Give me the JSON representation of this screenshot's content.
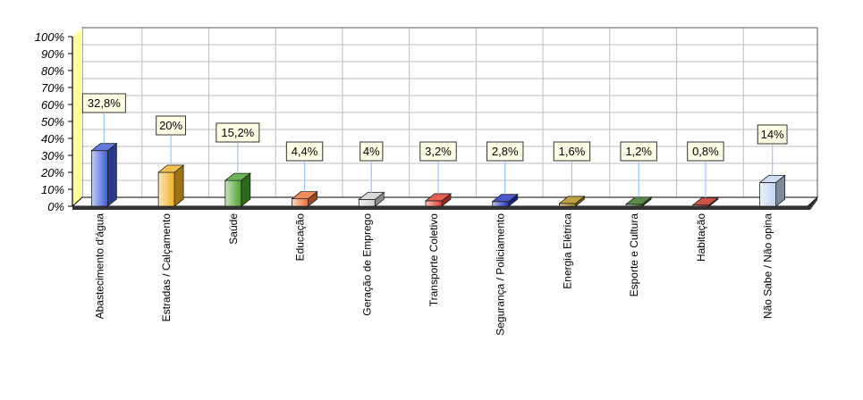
{
  "chart_data": {
    "type": "bar",
    "title": "",
    "xlabel": "",
    "ylabel": "",
    "ylim": [
      0,
      100
    ],
    "yticks": [
      0,
      10,
      20,
      30,
      40,
      50,
      60,
      70,
      80,
      90,
      100
    ],
    "ytick_labels": [
      "0%",
      "10%",
      "20%",
      "30%",
      "40%",
      "50%",
      "60%",
      "70%",
      "80%",
      "90%",
      "100%"
    ],
    "grid": true,
    "categories": [
      "Abastecimento d'água",
      "Estradas / Calçamento",
      "Saúde",
      "Educação",
      "Geração de Emprego",
      "Transporte Coletivo",
      "Segurança / Policiamento",
      "Energia Elétrica",
      "Esporte e Cultura",
      "Habitação",
      "Não Sabe / Não opina"
    ],
    "values": [
      32.8,
      20,
      15.2,
      4.4,
      4,
      3.2,
      2.8,
      1.6,
      1.2,
      0.8,
      14
    ],
    "value_labels": [
      "32,8%",
      "20%",
      "15,2%",
      "4,4%",
      "4%",
      "3,2%",
      "2,8%",
      "1,6%",
      "1,2%",
      "0,8%",
      "14%"
    ],
    "colors": [
      "#3b5bdb",
      "#f0b020",
      "#4aa02c",
      "#f07030",
      "#d0d0d0",
      "#e03a2a",
      "#1c2fc0",
      "#b08a10",
      "#2e6e1e",
      "#c02818",
      "#c0d4f0"
    ]
  }
}
